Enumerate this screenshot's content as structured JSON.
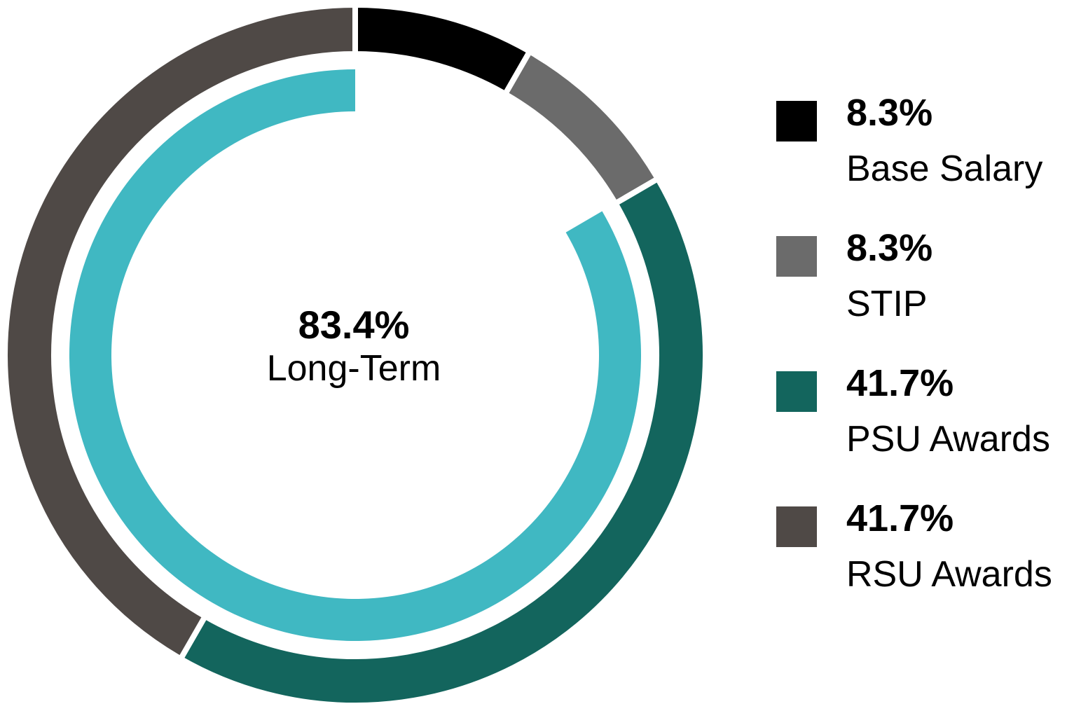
{
  "chart_data": {
    "type": "pie",
    "title": "",
    "outer_ring": {
      "series": [
        {
          "name": "Base Salary",
          "value": 8.3,
          "label": "8.3%",
          "color": "#000000"
        },
        {
          "name": "STIP",
          "value": 8.3,
          "label": "8.3%",
          "color": "#6b6b6b"
        },
        {
          "name": "PSU Awards",
          "value": 41.7,
          "label": "41.7%",
          "color": "#13655d"
        },
        {
          "name": "RSU Awards",
          "value": 41.7,
          "label": "41.7%",
          "color": "#4f4946"
        }
      ]
    },
    "inner_ring": {
      "name": "Long-Term",
      "value": 83.4,
      "label": "83.4%",
      "color": "#40b8c2"
    },
    "center": {
      "value": "83.4%",
      "label": "Long-Term"
    },
    "legend_position": "right"
  }
}
